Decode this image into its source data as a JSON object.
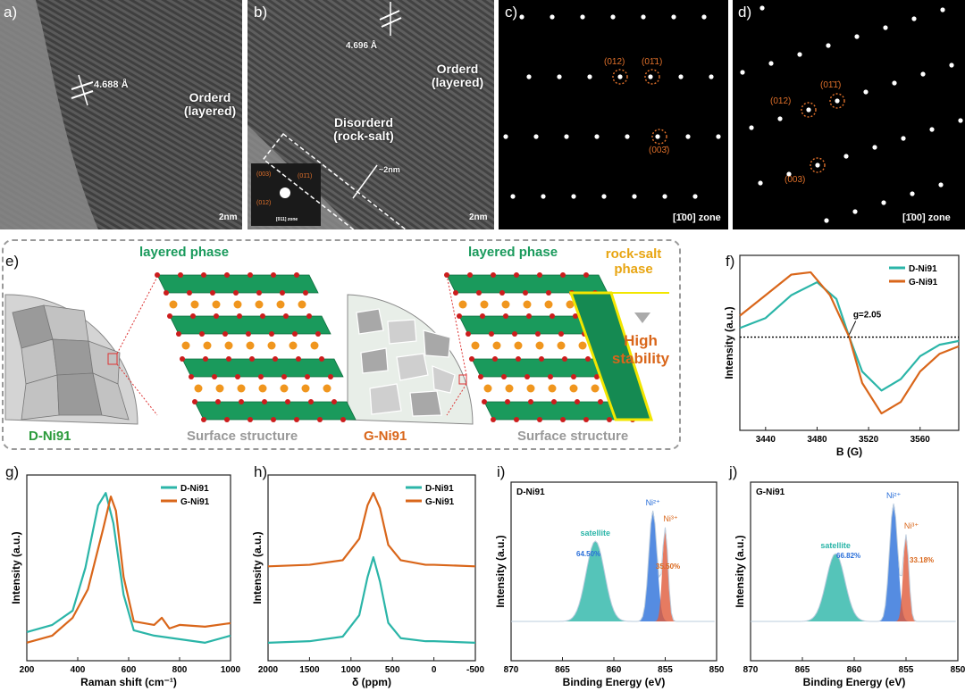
{
  "panel_labels": {
    "a": "a)",
    "b": "b)",
    "c": "c)",
    "d": "d)",
    "e": "e)",
    "f": "f)",
    "g": "g)",
    "h": "h)",
    "i": "i)",
    "j": "j)"
  },
  "tem_a": {
    "spacing": "4.688 Å",
    "region": "Orderd (layered)",
    "scale": "2nm"
  },
  "tem_b": {
    "spacing": "4.696 Å",
    "region1": "Orderd (layered)",
    "region2": "Disorderd (rock-salt)",
    "thickness": "~2nm",
    "scale": "2nm",
    "fft_labels": [
      "(003)",
      "(01̄1)",
      "(012)"
    ],
    "fft_zone": "[011] zone"
  },
  "saed_c": {
    "zone": "[1̄00] zone",
    "spots": [
      "(012)",
      "(01̄1)",
      "(003̄)"
    ]
  },
  "saed_d": {
    "zone": "[1̄00] zone",
    "spots": [
      "(012)",
      "(01̄1̄)",
      "(003)"
    ]
  },
  "schematic": {
    "left_sample": "D-Ni91",
    "right_sample": "G-Ni91",
    "left_phase": "layered phase",
    "right_phase": "layered phase",
    "rocksalt": "rock-salt phase",
    "stability": "High stability",
    "surface_left": "Surface structure",
    "surface_right": "Surface structure"
  },
  "colors": {
    "d_ni91": "#2bb5a8",
    "g_ni91": "#d9661a",
    "layer_green": "#1a9a5c",
    "atom_orange": "#f0961e",
    "atom_red": "#cc1d1d",
    "highlight": "#f2e600"
  },
  "chart_data": [
    {
      "id": "f",
      "type": "line",
      "xlabel": "B (G)",
      "ylabel": "Intensity (a.u.)",
      "xlim": [
        3420,
        3590
      ],
      "xticks": [
        3440,
        3480,
        3520,
        3560
      ],
      "annotation": "g=2.05",
      "series": [
        {
          "name": "D-Ni91",
          "x": [
            3420,
            3440,
            3460,
            3480,
            3495,
            3505,
            3515,
            3530,
            3545,
            3560,
            3575,
            3590
          ],
          "y": [
            0.12,
            0.25,
            0.55,
            0.72,
            0.5,
            0.0,
            -0.45,
            -0.7,
            -0.55,
            -0.25,
            -0.1,
            -0.05
          ]
        },
        {
          "name": "G-Ni91",
          "x": [
            3420,
            3440,
            3460,
            3475,
            3490,
            3505,
            3515,
            3530,
            3545,
            3560,
            3575,
            3590
          ],
          "y": [
            0.28,
            0.55,
            0.82,
            0.85,
            0.55,
            0.0,
            -0.6,
            -1.0,
            -0.85,
            -0.45,
            -0.22,
            -0.12
          ]
        }
      ]
    },
    {
      "id": "g",
      "type": "line",
      "xlabel": "Raman shift (cm⁻¹)",
      "ylabel": "Intensity (a.u.)",
      "xlim": [
        200,
        1000
      ],
      "xticks": [
        200,
        400,
        600,
        800,
        1000
      ],
      "series": [
        {
          "name": "D-Ni91",
          "x": [
            200,
            300,
            380,
            430,
            480,
            510,
            540,
            580,
            620,
            700,
            800,
            900,
            1000
          ],
          "y": [
            0.14,
            0.18,
            0.26,
            0.5,
            0.85,
            0.92,
            0.75,
            0.35,
            0.15,
            0.12,
            0.1,
            0.08,
            0.12
          ]
        },
        {
          "name": "G-Ni91",
          "x": [
            200,
            300,
            380,
            440,
            500,
            530,
            550,
            580,
            620,
            700,
            730,
            760,
            800,
            900,
            1000
          ],
          "y": [
            0.08,
            0.12,
            0.22,
            0.38,
            0.72,
            0.9,
            0.82,
            0.45,
            0.2,
            0.18,
            0.22,
            0.16,
            0.18,
            0.17,
            0.19
          ]
        }
      ]
    },
    {
      "id": "h",
      "type": "line",
      "xlabel": "δ (ppm)",
      "ylabel": "Intensity (a.u.)",
      "xlim": [
        2000,
        -500
      ],
      "xticks": [
        2000,
        1500,
        1000,
        500,
        0,
        -500
      ],
      "series": [
        {
          "name": "D-Ni91",
          "x": [
            2000,
            1500,
            1100,
            900,
            800,
            730,
            650,
            550,
            400,
            100,
            0,
            -500
          ],
          "y": [
            0.02,
            0.03,
            0.06,
            0.2,
            0.45,
            0.58,
            0.42,
            0.15,
            0.05,
            0.03,
            0.03,
            0.02
          ]
        },
        {
          "name": "G-Ni91",
          "x": [
            2000,
            1500,
            1100,
            900,
            800,
            730,
            650,
            550,
            400,
            100,
            0,
            -500
          ],
          "y": [
            0.52,
            0.53,
            0.56,
            0.7,
            0.92,
            1.0,
            0.9,
            0.66,
            0.56,
            0.53,
            0.53,
            0.52
          ]
        }
      ]
    },
    {
      "id": "i",
      "type": "area",
      "title": "D-Ni91",
      "xlabel": "Binding Energy (eV)",
      "ylabel": "Intensity (a.u.)",
      "xlim": [
        870,
        850
      ],
      "xticks": [
        870,
        865,
        860,
        855,
        850
      ],
      "peaks": [
        {
          "name": "satellite",
          "center": 861.8,
          "height": 0.45
        },
        {
          "name": "Ni²⁺",
          "center": 856.2,
          "height": 0.62,
          "percent": "64.50%"
        },
        {
          "name": "Ni³⁺",
          "center": 855.0,
          "height": 0.52,
          "percent": "35.50%"
        }
      ]
    },
    {
      "id": "j",
      "type": "area",
      "title": "G-Ni91",
      "xlabel": "Binding Energy (eV)",
      "ylabel": "Intensity (a.u.)",
      "xlim": [
        870,
        850
      ],
      "xticks": [
        870,
        865,
        860,
        855,
        850
      ],
      "peaks": [
        {
          "name": "satellite",
          "center": 861.8,
          "height": 0.38,
          "percent": ""
        },
        {
          "name": "Ni²⁺",
          "center": 856.2,
          "height": 0.66,
          "percent": "66.82%"
        },
        {
          "name": "Ni³⁺",
          "center": 855.0,
          "height": 0.48,
          "percent": "33.18%"
        }
      ]
    }
  ]
}
